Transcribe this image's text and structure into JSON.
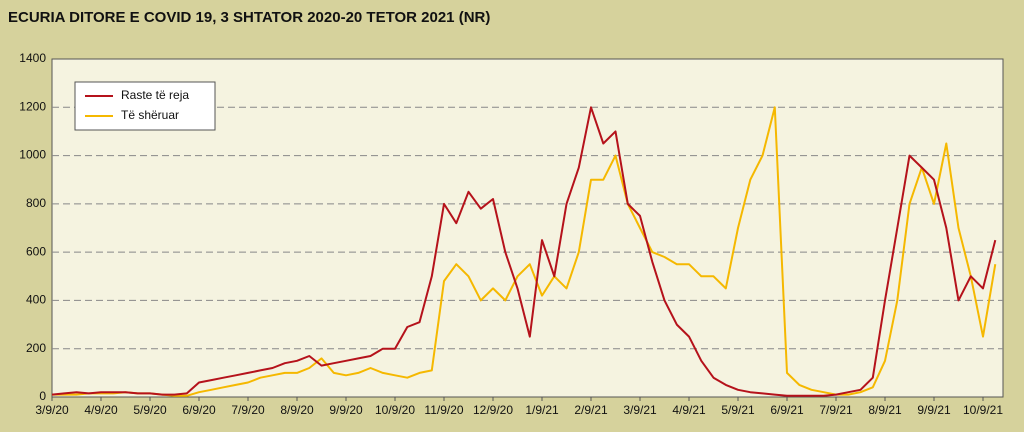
{
  "chart_data": {
    "type": "line",
    "title": "ECURIA DITORE E COVID 19, 3 SHTATOR 2020-20 TETOR 2021 (NR)",
    "categories": [
      "3/9/20",
      null,
      null,
      null,
      "4/9/20",
      null,
      null,
      null,
      "5/9/20",
      null,
      null,
      null,
      "6/9/20",
      null,
      null,
      null,
      "7/9/20",
      null,
      null,
      null,
      "8/9/20",
      null,
      null,
      null,
      "9/9/20",
      null,
      null,
      null,
      "10/9/20",
      null,
      null,
      null,
      "11/9/20",
      null,
      null,
      null,
      "12/9/20",
      null,
      null,
      null,
      "1/9/21",
      null,
      null,
      null,
      "2/9/21",
      null,
      null,
      null,
      "3/9/21",
      null,
      null,
      null,
      "4/9/21",
      null,
      null,
      null,
      "5/9/21",
      null,
      null,
      null,
      "6/9/21",
      null,
      null,
      null,
      "7/9/21",
      null,
      null,
      null,
      "8/9/21",
      null,
      null,
      null,
      "9/9/21",
      null,
      null,
      null,
      "10/9/21",
      null
    ],
    "series": [
      {
        "name": "Raste të reja",
        "color": "#b5121b",
        "values": [
          10,
          15,
          20,
          15,
          20,
          20,
          20,
          15,
          15,
          10,
          10,
          15,
          60,
          70,
          80,
          90,
          100,
          110,
          120,
          140,
          150,
          170,
          130,
          140,
          150,
          160,
          170,
          200,
          200,
          290,
          310,
          500,
          800,
          720,
          850,
          780,
          820,
          600,
          450,
          250,
          650,
          500,
          800,
          950,
          1200,
          1050,
          1100,
          800,
          750,
          560,
          400,
          300,
          250,
          150,
          80,
          50,
          30,
          20,
          15,
          10,
          5,
          5,
          5,
          5,
          10,
          20,
          30,
          80,
          400,
          700,
          1000,
          950,
          900,
          700,
          400,
          500,
          450,
          650
        ]
      },
      {
        "name": "Të shëruar",
        "color": "#f5b800",
        "values": [
          10,
          10,
          10,
          15,
          15,
          15,
          20,
          15,
          15,
          10,
          5,
          5,
          20,
          30,
          40,
          50,
          60,
          80,
          90,
          100,
          100,
          120,
          160,
          100,
          90,
          100,
          120,
          100,
          90,
          80,
          100,
          110,
          480,
          550,
          500,
          400,
          450,
          400,
          500,
          550,
          420,
          500,
          450,
          600,
          900,
          900,
          1000,
          800,
          700,
          600,
          580,
          550,
          550,
          500,
          500,
          450,
          700,
          900,
          1000,
          1200,
          100,
          50,
          30,
          20,
          10,
          10,
          20,
          40,
          150,
          400,
          800,
          950,
          800,
          1050,
          700,
          500,
          250,
          550
        ]
      }
    ],
    "ylim": [
      0,
      1400
    ],
    "yticks": [
      0,
      200,
      400,
      600,
      800,
      1000,
      1200,
      1400
    ],
    "grid": true,
    "legend": "upper left"
  }
}
